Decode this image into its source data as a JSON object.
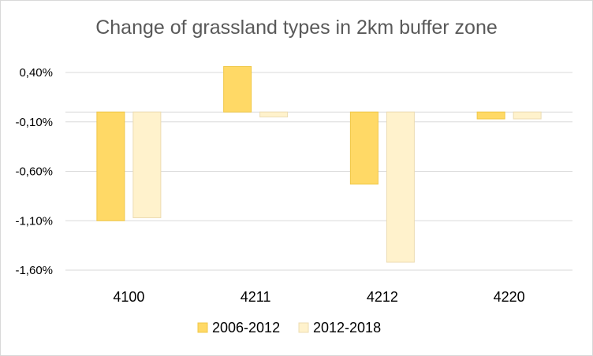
{
  "chart_data": {
    "type": "bar",
    "title": "Change of grassland types in 2km buffer zone",
    "xlabel": "",
    "ylabel": "",
    "categories": [
      "4100",
      "4211",
      "4212",
      "4220"
    ],
    "series": [
      {
        "name": "2006-2012",
        "values": [
          -1.1,
          0.46,
          -0.73,
          -0.07
        ],
        "color": "#ffd966",
        "stroke": "#f0c848"
      },
      {
        "name": "2012-2018",
        "values": [
          -1.07,
          -0.05,
          -1.52,
          -0.07
        ],
        "color": "#fff2cc",
        "stroke": "#ecdcb2"
      }
    ],
    "ylim": [
      -1.6,
      0.4
    ],
    "yticks": [
      0.4,
      -0.1,
      -0.6,
      -1.1,
      -1.6
    ],
    "ytick_labels": [
      "0,40%",
      "-0,10%",
      "-0,60%",
      "-1,10%",
      "-1,60%"
    ],
    "grid": true,
    "legend_position": "bottom"
  }
}
